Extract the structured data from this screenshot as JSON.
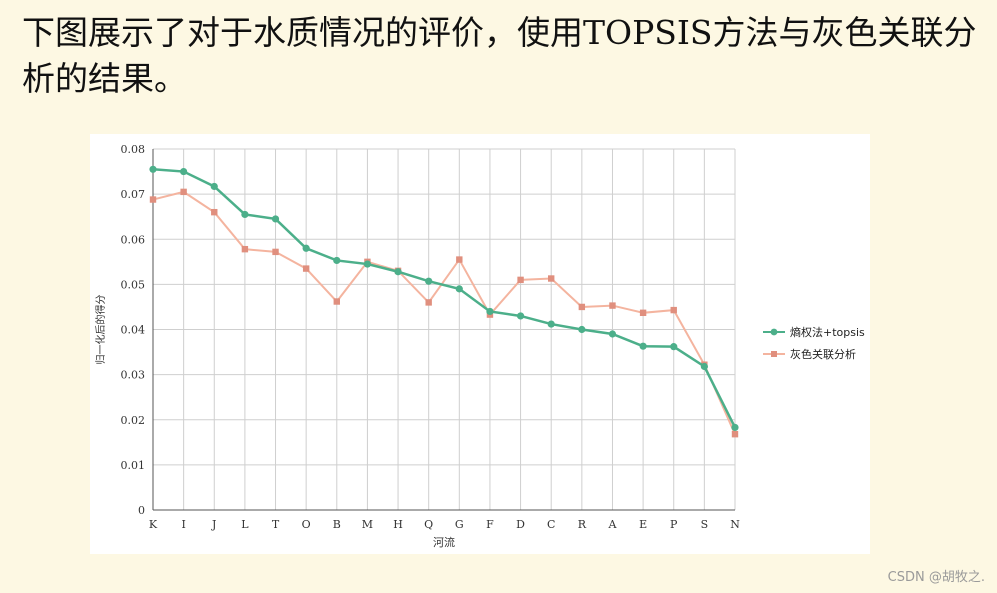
{
  "page": {
    "heading": "下图展示了对于水质情况的评价，使用TOPSIS方法与灰色关联分析的结果。",
    "watermark": "CSDN @胡牧之."
  },
  "chart_data": {
    "type": "line",
    "title": "",
    "xlabel": "河流",
    "ylabel": "归一化后的得分",
    "categories": [
      "K",
      "I",
      "J",
      "L",
      "T",
      "O",
      "B",
      "M",
      "H",
      "Q",
      "G",
      "F",
      "D",
      "C",
      "R",
      "A",
      "E",
      "P",
      "S",
      "N"
    ],
    "ylim": [
      0,
      0.08
    ],
    "yticks": [
      "0",
      "0.01",
      "0.02",
      "0.03",
      "0.04",
      "0.05",
      "0.06",
      "0.07",
      "0.08"
    ],
    "grid": true,
    "legend_position": "right",
    "series": [
      {
        "name": "熵权法+topsis",
        "color": "#4caf8a",
        "marker": "circle",
        "values": [
          0.0755,
          0.075,
          0.0717,
          0.0655,
          0.0645,
          0.058,
          0.0553,
          0.0545,
          0.0528,
          0.0507,
          0.049,
          0.044,
          0.043,
          0.0412,
          0.04,
          0.039,
          0.0363,
          0.0362,
          0.0318,
          0.0183
        ]
      },
      {
        "name": "灰色关联分析",
        "color": "#f4b49f",
        "marker_color": "#e08f7e",
        "marker": "square",
        "values": [
          0.0688,
          0.0705,
          0.066,
          0.0578,
          0.0572,
          0.0535,
          0.0462,
          0.055,
          0.053,
          0.046,
          0.0555,
          0.0433,
          0.051,
          0.0513,
          0.045,
          0.0453,
          0.0437,
          0.0443,
          0.0322,
          0.0168
        ]
      }
    ]
  }
}
